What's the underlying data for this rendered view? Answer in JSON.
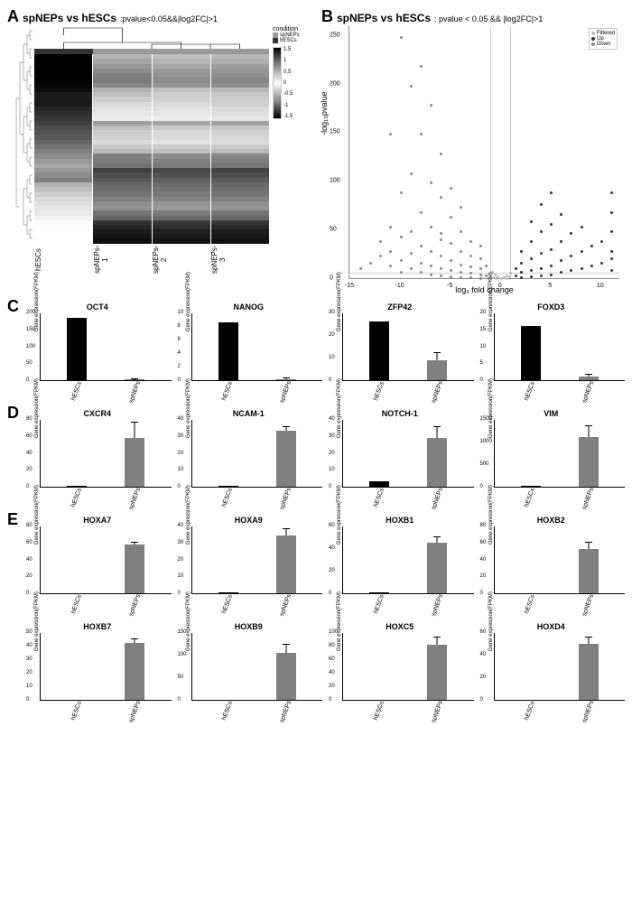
{
  "panelA": {
    "label": "A",
    "title": "spNEPs vs hESCs",
    "subtitle": ":pvalue<0.05&&|log2FC|>1",
    "columns": [
      "hESCs",
      "spNEPs-1",
      "spNEPs-2",
      "spNEPs-3"
    ],
    "condition_colors": [
      "#333333",
      "#999999",
      "#999999",
      "#999999"
    ],
    "legend": {
      "title": "condition",
      "items": [
        "spNEPs",
        "hESCs"
      ],
      "colors": [
        "#999999",
        "#333333"
      ]
    },
    "scale": {
      "min": -1.5,
      "max": 1.5,
      "ticks": [
        -1.5,
        -1,
        -0.5,
        0,
        0.5,
        1,
        1.5
      ]
    },
    "heatmap_cols": [
      [
        0,
        0,
        0,
        0,
        0,
        0,
        2,
        5,
        10,
        10,
        10,
        15,
        18,
        22,
        25,
        30,
        32,
        35,
        40,
        45,
        50,
        55,
        60,
        65,
        60,
        55,
        50,
        70,
        75,
        80,
        85,
        88,
        90,
        92,
        95,
        98,
        100,
        100,
        100,
        100
      ],
      [
        70,
        65,
        60,
        55,
        50,
        48,
        52,
        70,
        75,
        80,
        85,
        88,
        90,
        92,
        62,
        75,
        80,
        82,
        85,
        78,
        72,
        50,
        48,
        45,
        25,
        30,
        35,
        40,
        42,
        45,
        50,
        55,
        58,
        45,
        40,
        20,
        15,
        10,
        8,
        5
      ],
      [
        75,
        70,
        65,
        60,
        58,
        55,
        58,
        75,
        80,
        82,
        85,
        88,
        90,
        92,
        65,
        80,
        85,
        85,
        88,
        80,
        75,
        55,
        50,
        48,
        28,
        32,
        38,
        42,
        45,
        48,
        52,
        58,
        60,
        48,
        42,
        22,
        18,
        12,
        10,
        8
      ],
      [
        72,
        68,
        62,
        58,
        56,
        52,
        56,
        72,
        78,
        80,
        82,
        86,
        88,
        90,
        63,
        78,
        82,
        84,
        86,
        79,
        73,
        52,
        49,
        46,
        26,
        31,
        36,
        41,
        43,
        46,
        51,
        56,
        59,
        46,
        41,
        21,
        16,
        11,
        9,
        6
      ]
    ]
  },
  "panelB": {
    "label": "B",
    "title": "spNEPs vs hESCs",
    "subtitle": ": pvalue < 0.05 && |log2FC|>1",
    "xlabel": "log₂ fold change",
    "ylabel": "-log₁₀pvalue",
    "xlim": [
      -15,
      12
    ],
    "ylim": [
      0,
      260
    ],
    "xticks": [
      -15,
      -10,
      -5,
      0,
      5,
      10
    ],
    "yticks": [
      0,
      50,
      100,
      150,
      200,
      250
    ],
    "vlines": [
      -1,
      1
    ],
    "hline": 5,
    "legend": [
      {
        "label": "Filtered",
        "color": "#bbbbbb"
      },
      {
        "label": "Up",
        "color": "#333333"
      },
      {
        "label": "Down",
        "color": "#888888"
      }
    ],
    "points_down": [
      [
        -14,
        12
      ],
      [
        -13,
        18
      ],
      [
        -12,
        25
      ],
      [
        -12,
        40
      ],
      [
        -11,
        15
      ],
      [
        -11,
        30
      ],
      [
        -11,
        55
      ],
      [
        -10,
        8
      ],
      [
        -10,
        20
      ],
      [
        -10,
        45
      ],
      [
        -10,
        90
      ],
      [
        -9,
        12
      ],
      [
        -9,
        28
      ],
      [
        -9,
        50
      ],
      [
        -9,
        110
      ],
      [
        -8,
        8
      ],
      [
        -8,
        18
      ],
      [
        -8,
        35
      ],
      [
        -8,
        70
      ],
      [
        -8,
        150
      ],
      [
        -8,
        220
      ],
      [
        -7,
        6
      ],
      [
        -7,
        15
      ],
      [
        -7,
        30
      ],
      [
        -7,
        55
      ],
      [
        -7,
        100
      ],
      [
        -7,
        180
      ],
      [
        -6,
        5
      ],
      [
        -6,
        12
      ],
      [
        -6,
        25
      ],
      [
        -6,
        48
      ],
      [
        -6,
        85
      ],
      [
        -6,
        130
      ],
      [
        -5,
        4
      ],
      [
        -5,
        10
      ],
      [
        -5,
        20
      ],
      [
        -5,
        38
      ],
      [
        -5,
        65
      ],
      [
        -5,
        95
      ],
      [
        -4,
        3
      ],
      [
        -4,
        8
      ],
      [
        -4,
        16
      ],
      [
        -4,
        30
      ],
      [
        -4,
        50
      ],
      [
        -4,
        75
      ],
      [
        -3,
        3
      ],
      [
        -3,
        7
      ],
      [
        -3,
        14
      ],
      [
        -3,
        25
      ],
      [
        -3,
        40
      ],
      [
        -2,
        2
      ],
      [
        -2,
        6
      ],
      [
        -2,
        12
      ],
      [
        -2,
        22
      ],
      [
        -2,
        35
      ],
      [
        -1.5,
        5
      ],
      [
        -1.5,
        15
      ],
      [
        -10,
        250
      ],
      [
        -9,
        200
      ],
      [
        -7,
        55
      ],
      [
        -6,
        42
      ],
      [
        -11,
        150
      ]
    ],
    "points_up": [
      [
        1.5,
        5
      ],
      [
        1.5,
        12
      ],
      [
        2,
        3
      ],
      [
        2,
        8
      ],
      [
        2,
        18
      ],
      [
        2,
        30
      ],
      [
        3,
        4
      ],
      [
        3,
        10
      ],
      [
        3,
        22
      ],
      [
        3,
        40
      ],
      [
        3,
        60
      ],
      [
        4,
        5
      ],
      [
        4,
        12
      ],
      [
        4,
        28
      ],
      [
        4,
        50
      ],
      [
        4,
        78
      ],
      [
        5,
        6
      ],
      [
        5,
        15
      ],
      [
        5,
        32
      ],
      [
        5,
        58
      ],
      [
        5,
        90
      ],
      [
        6,
        8
      ],
      [
        6,
        20
      ],
      [
        6,
        40
      ],
      [
        6,
        68
      ],
      [
        7,
        10
      ],
      [
        7,
        25
      ],
      [
        7,
        48
      ],
      [
        8,
        12
      ],
      [
        8,
        30
      ],
      [
        8,
        55
      ],
      [
        9,
        15
      ],
      [
        9,
        35
      ],
      [
        10,
        18
      ],
      [
        10,
        40
      ],
      [
        11,
        22
      ],
      [
        11,
        10
      ],
      [
        11,
        30
      ],
      [
        11,
        50
      ],
      [
        11,
        70
      ],
      [
        11,
        90
      ]
    ],
    "points_filtered": [
      [
        -0.8,
        3
      ],
      [
        -0.5,
        2
      ],
      [
        -0.3,
        4
      ],
      [
        0,
        2
      ],
      [
        0.3,
        3
      ],
      [
        0.5,
        2
      ],
      [
        0.8,
        4
      ],
      [
        -0.6,
        6
      ],
      [
        0.6,
        5
      ],
      [
        -0.9,
        8
      ],
      [
        0.9,
        7
      ]
    ]
  },
  "panelC": {
    "label": "C",
    "ylabel": "Gene expression(FPKM)",
    "xlabels": [
      "hESCs",
      "spNEPs"
    ],
    "bar_colors": [
      "#000000",
      "#808080"
    ],
    "charts": [
      {
        "title": "OCT4",
        "ymax": 200,
        "ystep": 50,
        "vals": [
          185,
          2
        ],
        "err": [
          0,
          1
        ]
      },
      {
        "title": "NANOG",
        "ymax": 10,
        "ystep": 2,
        "vals": [
          8.5,
          0.2
        ],
        "err": [
          0,
          0.1
        ]
      },
      {
        "title": "ZFP42",
        "ymax": 30,
        "ystep": 10,
        "vals": [
          26,
          9
        ],
        "err": [
          0,
          3
        ]
      },
      {
        "title": "FOXD3",
        "ymax": 20,
        "ystep": 5,
        "vals": [
          16,
          1
        ],
        "err": [
          0,
          0.5
        ]
      }
    ]
  },
  "panelD": {
    "label": "D",
    "ylabel": "Gene expression(FPKM)",
    "xlabels": [
      "hESCs",
      "spNEPs"
    ],
    "bar_colors": [
      "#000000",
      "#808080"
    ],
    "charts": [
      {
        "title": "CXCR4",
        "ymax": 80,
        "ystep": 20,
        "vals": [
          1,
          58
        ],
        "err": [
          0,
          18
        ]
      },
      {
        "title": "NCAM-1",
        "ymax": 40,
        "ystep": 10,
        "vals": [
          0.5,
          33
        ],
        "err": [
          0,
          2
        ]
      },
      {
        "title": "NOTCH-1",
        "ymax": 40,
        "ystep": 10,
        "vals": [
          3,
          29
        ],
        "err": [
          0,
          6
        ]
      },
      {
        "title": "VIM",
        "ymax": 1500,
        "ystep": 500,
        "vals": [
          20,
          1100
        ],
        "err": [
          0,
          250
        ]
      }
    ]
  },
  "panelE": {
    "label": "E",
    "ylabel": "Gene expression(FPKM)",
    "xlabels": [
      "hESCs",
      "spNEPs"
    ],
    "bar_colors": [
      "#000000",
      "#808080"
    ],
    "charts_row1": [
      {
        "title": "HOXA7",
        "ymax": 80,
        "ystep": 20,
        "vals": [
          0.5,
          58
        ],
        "err": [
          0,
          2
        ]
      },
      {
        "title": "HOXA9",
        "ymax": 40,
        "ystep": 10,
        "vals": [
          0.3,
          34
        ],
        "err": [
          0,
          4
        ]
      },
      {
        "title": "HOXB1",
        "ymax": 60,
        "ystep": 20,
        "vals": [
          0.5,
          45
        ],
        "err": [
          0,
          5
        ]
      },
      {
        "title": "HOXB2",
        "ymax": 80,
        "ystep": 20,
        "vals": [
          0.3,
          52
        ],
        "err": [
          0,
          8
        ]
      }
    ],
    "charts_row2": [
      {
        "title": "HOXB7",
        "ymax": 50,
        "ystep": 10,
        "vals": [
          0.3,
          42
        ],
        "err": [
          0,
          3
        ]
      },
      {
        "title": "HOXB9",
        "ymax": 150,
        "ystep": 50,
        "vals": [
          0.5,
          105
        ],
        "err": [
          0,
          18
        ]
      },
      {
        "title": "HOXC5",
        "ymax": 100,
        "ystep": 20,
        "vals": [
          0.3,
          82
        ],
        "err": [
          0,
          10
        ]
      },
      {
        "title": "HOXD4",
        "ymax": 60,
        "ystep": 20,
        "vals": [
          0.3,
          50
        ],
        "err": [
          0,
          5
        ]
      }
    ]
  }
}
